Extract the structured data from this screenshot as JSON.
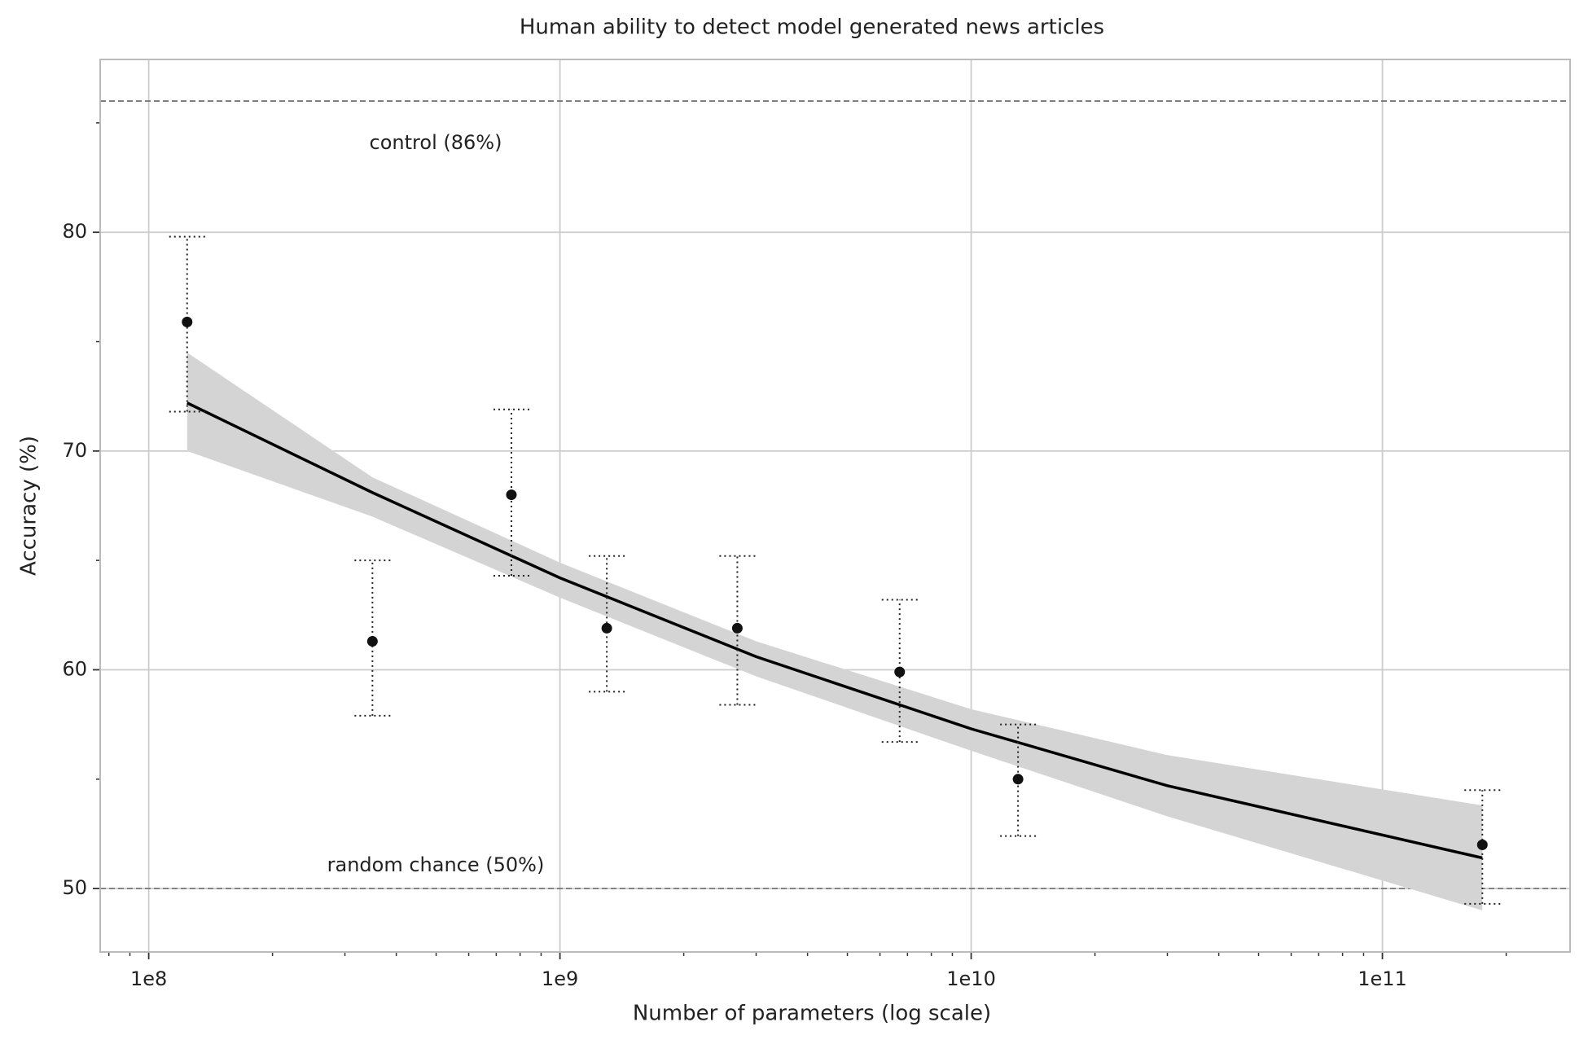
{
  "chart_data": {
    "type": "errorbar-fit",
    "title": "Human ability to detect model generated news articles",
    "xlabel": "Number of parameters (log scale)",
    "ylabel": "Accuracy (%)",
    "xscale": "log",
    "grid": true,
    "xlim": [
      76200000,
      286000000000
    ],
    "ylim": [
      47.1,
      87.9
    ],
    "xticks": [
      {
        "value": 100000000,
        "label": "1e8"
      },
      {
        "value": 1000000000,
        "label": "1e9"
      },
      {
        "value": 10000000000,
        "label": "1e10"
      },
      {
        "value": 100000000000,
        "label": "1e11"
      }
    ],
    "xticks_minor": [
      80000000,
      90000000,
      200000000,
      300000000,
      400000000,
      500000000,
      600000000,
      700000000,
      800000000,
      900000000,
      2000000000,
      3000000000,
      4000000000,
      5000000000,
      6000000000,
      7000000000,
      8000000000,
      9000000000,
      20000000000,
      30000000000,
      40000000000,
      50000000000,
      60000000000,
      70000000000,
      80000000000,
      90000000000,
      200000000000
    ],
    "yticks": [
      50,
      60,
      70,
      80
    ],
    "yticks_minor": [
      55,
      65,
      75,
      85
    ],
    "hlines": [
      {
        "value": 86,
        "label": "control (86%)"
      },
      {
        "value": 50,
        "label": "random chance (50%)"
      }
    ],
    "hline_color": "#777777",
    "points": {
      "color": "#111111",
      "x": [
        124000000,
        350000000,
        762000000,
        1300000000,
        2700000000,
        6700000000,
        13000000000,
        175000000000
      ],
      "values": [
        75.9,
        61.3,
        68.0,
        61.9,
        61.9,
        59.9,
        55.0,
        52.0
      ],
      "lower": [
        71.8,
        57.9,
        64.3,
        59.0,
        58.4,
        56.7,
        52.4,
        49.3
      ],
      "upper": [
        79.8,
        65.0,
        71.9,
        65.2,
        65.2,
        63.2,
        57.5,
        54.5
      ]
    },
    "fit": {
      "color": "#000000",
      "band_color": "#d4d4d4",
      "x": [
        124000000,
        350000000,
        1000000000,
        3000000000,
        10000000000,
        30000000000,
        175000000000
      ],
      "values": [
        72.2,
        68.1,
        64.2,
        60.6,
        57.3,
        54.7,
        51.4
      ],
      "lower": [
        70.0,
        67.0,
        63.3,
        59.7,
        56.3,
        53.3,
        49.0
      ],
      "upper": [
        74.5,
        68.8,
        64.9,
        61.3,
        58.2,
        56.1,
        53.8
      ]
    }
  }
}
